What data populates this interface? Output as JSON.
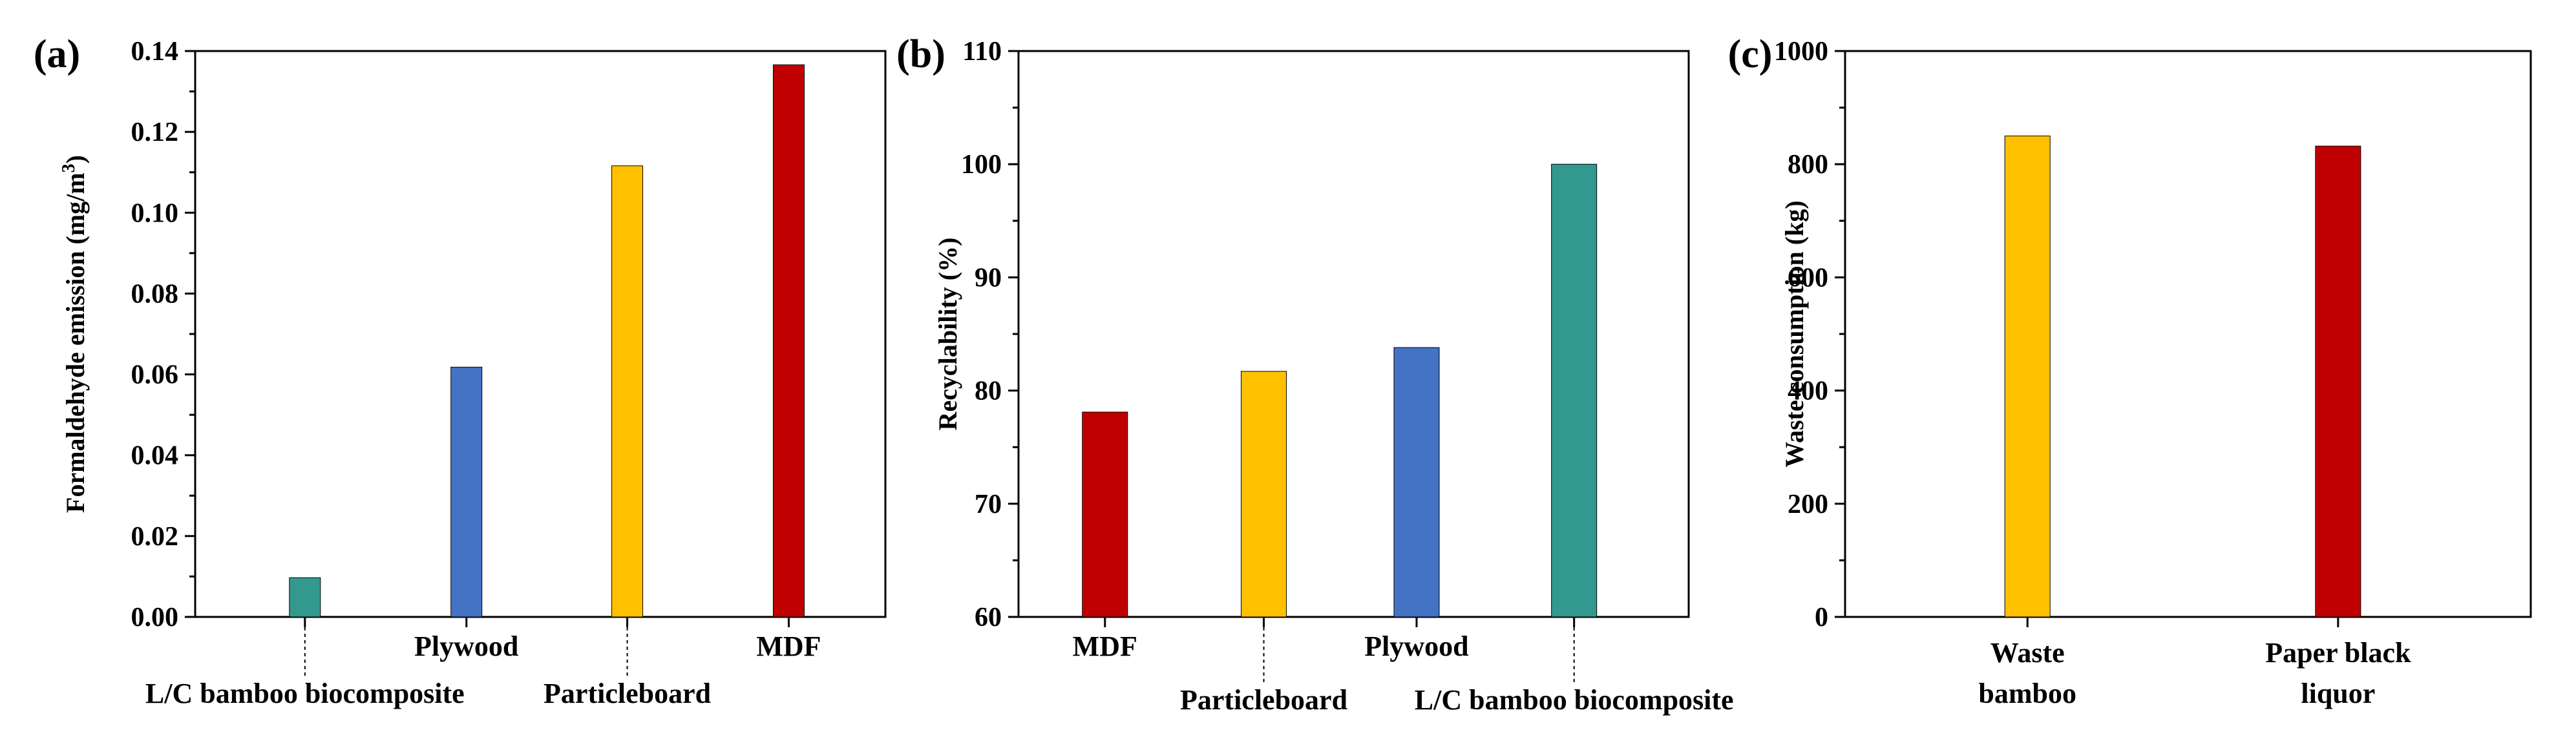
{
  "chart_data": [
    {
      "panel_label": "(a)",
      "type": "bar",
      "title": "",
      "xlabel": "",
      "ylabel": "Formaldehyde emission (mg/m",
      "ylabel_sup": "3",
      "ylabel_tail": ")",
      "ylim": [
        0.0,
        0.14
      ],
      "yticks": [
        "0.00",
        "0.02",
        "0.04",
        "0.06",
        "0.08",
        "0.10",
        "0.12",
        "0.14"
      ],
      "categories": [
        "L/C bamboo biocomposite",
        "Plywood",
        "Particleboard",
        "MDF"
      ],
      "category_rows": [
        "lower",
        "upper",
        "lower",
        "upper"
      ],
      "values": [
        0.0097,
        0.0618,
        0.1116,
        0.1366
      ],
      "colors": [
        "#33998f",
        "#4472c4",
        "#ffc000",
        "#c00000"
      ]
    },
    {
      "panel_label": "(b)",
      "type": "bar",
      "title": "",
      "xlabel": "",
      "ylabel": "Recyclability (%)",
      "ylim": [
        60,
        110
      ],
      "yticks": [
        "60",
        "70",
        "80",
        "90",
        "100",
        "110"
      ],
      "categories": [
        "MDF",
        "Particleboard",
        "Plywood",
        "L/C bamboo biocomposite"
      ],
      "category_rows": [
        "upper",
        "lower",
        "upper",
        "lower"
      ],
      "values": [
        78.1,
        81.7,
        83.8,
        100.0
      ],
      "colors": [
        "#c00000",
        "#ffc000",
        "#4472c4",
        "#33998f"
      ]
    },
    {
      "panel_label": "(c)",
      "type": "bar",
      "title": "",
      "xlabel": "",
      "ylabel": "Waste consumption (kg)",
      "ylim": [
        0,
        1000
      ],
      "yticks": [
        "0",
        "200",
        "400",
        "600",
        "800",
        "1000"
      ],
      "categories": [
        [
          "Waste",
          "bamboo"
        ],
        [
          "Paper black",
          "liquor"
        ]
      ],
      "values": [
        850,
        832
      ],
      "colors": [
        "#ffc000",
        "#c00000"
      ]
    }
  ]
}
